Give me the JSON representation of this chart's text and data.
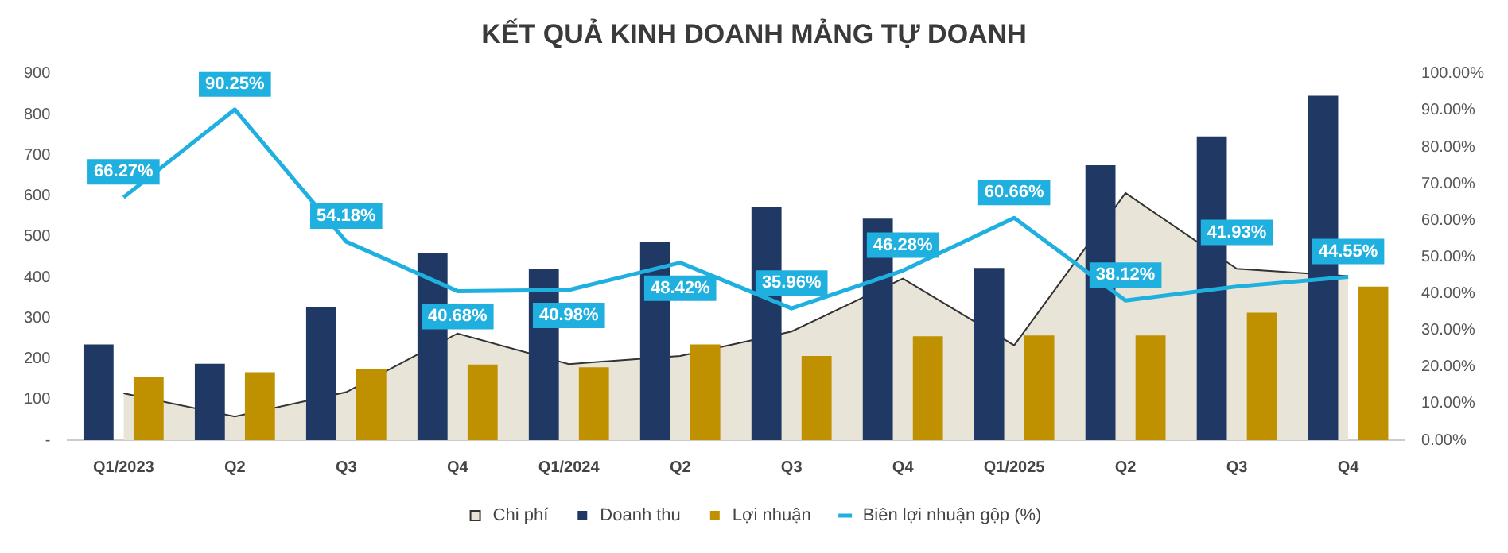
{
  "chart_data": {
    "type": "bar",
    "title": "KẾT QUẢ KINH DOANH MẢNG TỰ DOANH",
    "categories": [
      "Q1/2023",
      "Q2",
      "Q3",
      "Q4",
      "Q1/2024",
      "Q2",
      "Q3",
      "Q4",
      "Q1/2025",
      "Q2",
      "Q3",
      "Q4"
    ],
    "series": [
      {
        "name": "Chi phí",
        "type": "area",
        "color": "#e9e4d8",
        "values": [
          115,
          58,
          118,
          262,
          187,
          207,
          267,
          397,
          233,
          607,
          421,
          403
        ]
      },
      {
        "name": "Doanh thu",
        "color": "#1f3864",
        "values": [
          235,
          188,
          327,
          459,
          420,
          486,
          572,
          544,
          423,
          675,
          746,
          846
        ]
      },
      {
        "name": "Lợi nhuận",
        "color": "#bf9000",
        "values": [
          154,
          167,
          174,
          186,
          179,
          235,
          207,
          255,
          257,
          257,
          313,
          377
        ]
      },
      {
        "name": "Biên lợi nhuận gộp (%)",
        "type": "line",
        "axis": "y2",
        "color": "#1fb0e0",
        "values": [
          66.27,
          90.25,
          54.18,
          40.68,
          40.98,
          48.42,
          35.96,
          46.28,
          60.66,
          38.12,
          41.93,
          44.55
        ],
        "value_labels": [
          "66.27%",
          "90.25%",
          "54.18%",
          "40.68%",
          "40.98%",
          "48.42%",
          "35.96%",
          "46.28%",
          "60.66%",
          "38.12%",
          "41.93%",
          "44.55%"
        ]
      }
    ],
    "ylim": [
      0,
      900
    ],
    "yticks": [
      {
        "value": 0,
        "label": "-"
      },
      100,
      200,
      300,
      400,
      500,
      600,
      700,
      800,
      900
    ],
    "y2lim": [
      0,
      100
    ],
    "y2ticks": [
      {
        "value": 0,
        "label": "0.00%"
      },
      {
        "value": 10,
        "label": "10.00%"
      },
      {
        "value": 20,
        "label": "20.00%"
      },
      {
        "value": 30,
        "label": "30.00%"
      },
      {
        "value": 40,
        "label": "40.00%"
      },
      {
        "value": 50,
        "label": "50.00%"
      },
      {
        "value": 60,
        "label": "60.00%"
      },
      {
        "value": 70,
        "label": "70.00%"
      },
      {
        "value": 80,
        "label": "80.00%"
      },
      {
        "value": 90,
        "label": "90.00%"
      },
      {
        "value": 100,
        "label": "100.00%"
      }
    ],
    "grid": false,
    "legend": "bottom",
    "marker": "none",
    "line_style": "solid"
  }
}
